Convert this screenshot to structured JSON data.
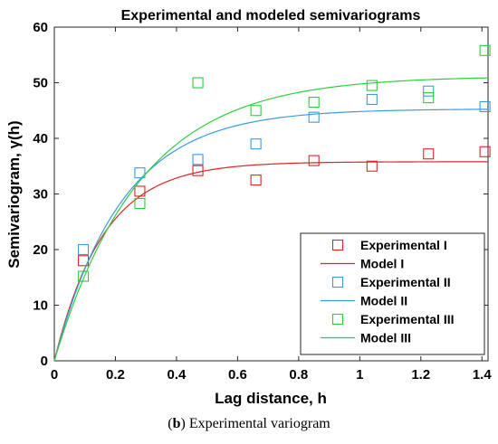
{
  "chart_data": {
    "type": "scatter",
    "title": "Experimental and modeled semivariograms",
    "xlabel": "Lag distance, h",
    "ylabel": "Semivariogram, γ(h)",
    "xlim": [
      0,
      1.42
    ],
    "ylim": [
      0,
      60
    ],
    "xticks": [
      0,
      0.2,
      0.4,
      0.6,
      0.8,
      1.0,
      1.2,
      1.4
    ],
    "xtick_labels": [
      "0",
      "0.2",
      "0.4",
      "0.6",
      "0.8",
      "1",
      "1.2",
      "1.4"
    ],
    "yticks": [
      0,
      10,
      20,
      30,
      40,
      50,
      60
    ],
    "ytick_labels": [
      "0",
      "10",
      "20",
      "30",
      "40",
      "50",
      "60"
    ],
    "grid": false,
    "legend_position": "bottom-right",
    "series": [
      {
        "name": "Experimental I",
        "kind": "markers",
        "color": "#d62728",
        "x": [
          0.095,
          0.28,
          0.47,
          0.66,
          0.85,
          1.04,
          1.225,
          1.41
        ],
        "y": [
          18,
          30.5,
          34.2,
          32.5,
          36,
          35,
          37.2,
          37.6
        ]
      },
      {
        "name": "Model I",
        "kind": "line",
        "color": "#d62728",
        "sill": 35.8,
        "range_param": 0.16
      },
      {
        "name": "Experimental II",
        "kind": "markers",
        "color": "#3a9bdc",
        "x": [
          0.095,
          0.28,
          0.47,
          0.66,
          0.85,
          1.04,
          1.225,
          1.41
        ],
        "y": [
          20,
          33.8,
          36.2,
          39,
          43.8,
          47,
          48.5,
          45.7
        ]
      },
      {
        "name": "Model II",
        "kind": "line",
        "color": "#3a9bdc",
        "sill": 45.3,
        "range_param": 0.22
      },
      {
        "name": "Experimental III",
        "kind": "markers",
        "color": "#2ecc40",
        "x": [
          0.095,
          0.28,
          0.47,
          0.66,
          0.85,
          1.04,
          1.225,
          1.41
        ],
        "y": [
          15.2,
          28.3,
          50,
          45,
          46.5,
          49.5,
          47.3,
          55.8
        ]
      },
      {
        "name": "Model III",
        "kind": "line",
        "color": "#2ecc40",
        "sill": 51.2,
        "range_param": 0.28
      }
    ]
  },
  "caption": {
    "label": "b",
    "text": " Experimental variogram"
  }
}
